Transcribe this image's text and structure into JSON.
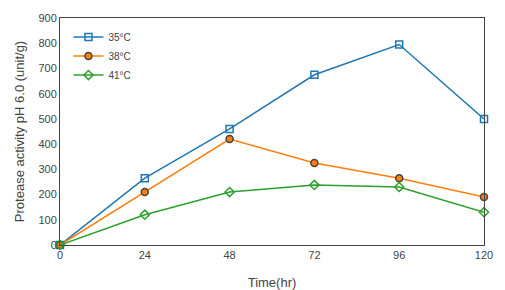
{
  "chart_data": {
    "type": "line",
    "x": [
      0,
      24,
      48,
      72,
      96,
      120
    ],
    "series": [
      {
        "name": "35°C",
        "values": [
          0,
          265,
          460,
          675,
          795,
          500
        ],
        "marker": "square-open"
      },
      {
        "name": "38°C",
        "values": [
          0,
          210,
          420,
          325,
          265,
          190
        ],
        "marker": "circle"
      },
      {
        "name": "41°C",
        "values": [
          0,
          120,
          210,
          238,
          230,
          130
        ],
        "marker": "diamond-open"
      }
    ],
    "xlabel": "Time(hr)",
    "ylabel": "Protease activity pH 6.0 (unit/g)",
    "xlim": [
      0,
      120
    ],
    "ylim": [
      0,
      900
    ],
    "xticks": [
      0,
      24,
      48,
      72,
      96,
      120
    ],
    "yticks": [
      0,
      100,
      200,
      300,
      400,
      500,
      600,
      700,
      800,
      900
    ],
    "grid": false,
    "legend": "upper left"
  }
}
